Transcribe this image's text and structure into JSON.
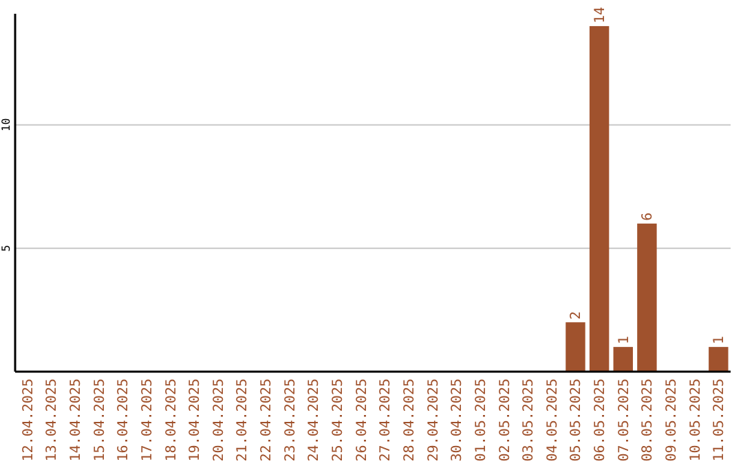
{
  "chart_data": {
    "type": "bar",
    "categories": [
      "12.04.2025",
      "13.04.2025",
      "14.04.2025",
      "15.04.2025",
      "16.04.2025",
      "17.04.2025",
      "18.04.2025",
      "19.04.2025",
      "20.04.2025",
      "21.04.2025",
      "22.04.2025",
      "23.04.2025",
      "24.04.2025",
      "25.04.2025",
      "26.04.2025",
      "27.04.2025",
      "28.04.2025",
      "29.04.2025",
      "30.04.2025",
      "01.05.2025",
      "02.05.2025",
      "03.05.2025",
      "04.05.2025",
      "05.05.2025",
      "06.05.2025",
      "07.05.2025",
      "08.05.2025",
      "09.05.2025",
      "10.05.2025",
      "11.05.2025"
    ],
    "values": [
      0,
      0,
      0,
      0,
      0,
      0,
      0,
      0,
      0,
      0,
      0,
      0,
      0,
      0,
      0,
      0,
      0,
      0,
      0,
      0,
      0,
      0,
      0,
      2,
      14,
      1,
      6,
      0,
      0,
      1
    ],
    "value_labels": [
      null,
      null,
      null,
      null,
      null,
      null,
      null,
      null,
      null,
      null,
      null,
      null,
      null,
      null,
      null,
      null,
      null,
      null,
      null,
      null,
      null,
      null,
      null,
      "2",
      "14",
      "1",
      "6",
      null,
      null,
      "1"
    ],
    "color": "#a0522d",
    "ylim": [
      0,
      14.5
    ],
    "yticks": [
      5,
      10
    ],
    "grid": "y"
  }
}
